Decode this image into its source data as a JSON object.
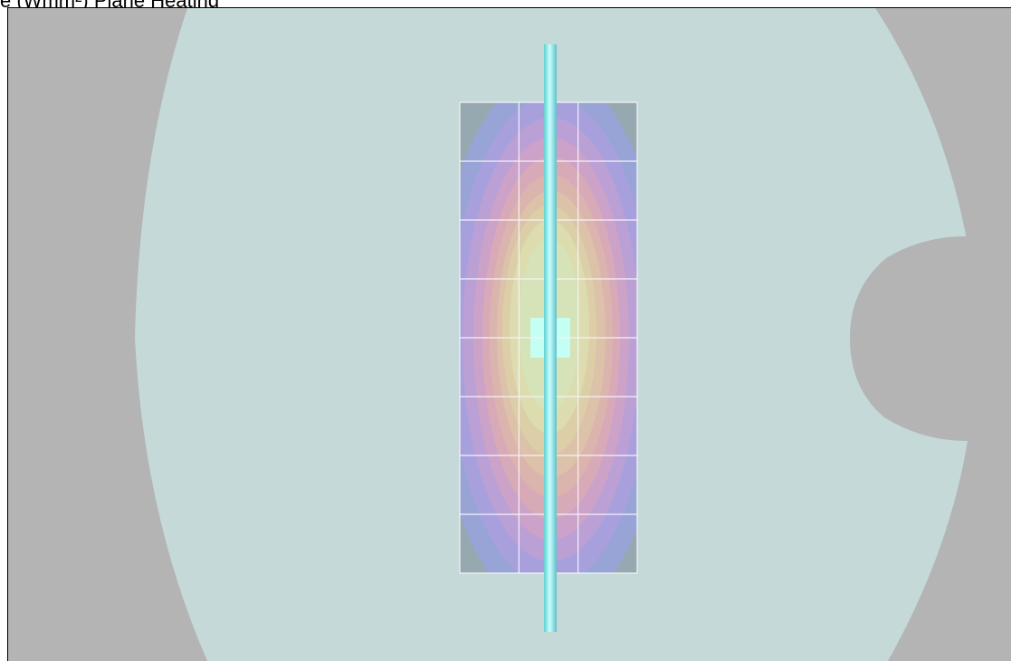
{
  "header": {
    "cropped_text": "e (Wmm²) Plane Heating"
  },
  "scene": {
    "background_color": "#b4b4b4",
    "vessel_color": "#c5d9d9",
    "grid_line_color": "#f4f4f8",
    "rod_color": "#8ee6e6",
    "hotspot_color": "#c4fff4",
    "grid": {
      "columns": 3,
      "rows": 8
    },
    "contour_colors": [
      "#96a8b0",
      "#98a4d6",
      "#a8a0dc",
      "#bba0d6",
      "#cca2c8",
      "#d8aab8",
      "#dcb4ae",
      "#dcc2a8",
      "#dccfa8",
      "#dcdcae",
      "#d6e2b8"
    ]
  }
}
